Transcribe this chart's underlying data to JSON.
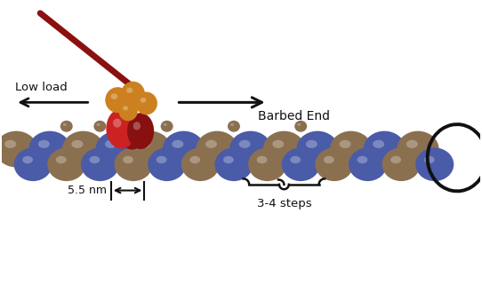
{
  "fig_width": 5.42,
  "fig_height": 3.2,
  "dpi": 100,
  "bg_color": "#ffffff",
  "actin_blue": "#4a5ba8",
  "actin_brown": "#8B7050",
  "myosin_red_light": "#cc2222",
  "myosin_red_dark": "#881010",
  "myosin_orange": "#cc8020",
  "rod_color": "#8B1010",
  "text_color": "#000000",
  "arrow_color": "#111111",
  "label_low_load": "Low load",
  "label_barbed_end": "Barbed End",
  "label_55nm": "5.5 nm",
  "label_steps": "3-4 steps"
}
